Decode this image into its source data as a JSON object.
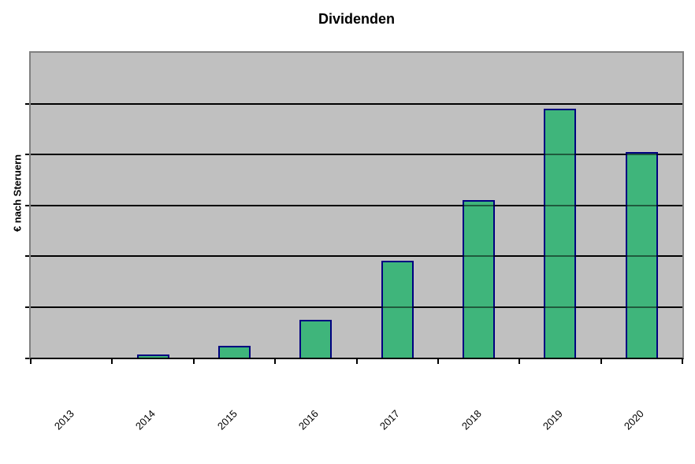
{
  "chart_data": {
    "type": "bar",
    "title": "Dividenden",
    "ylabel": "€ nach Steruern",
    "xlabel": "",
    "categories": [
      "2013",
      "2014",
      "2015",
      "2016",
      "2017",
      "2018",
      "2019",
      "2020"
    ],
    "values": [
      0,
      0.06,
      0.23,
      0.75,
      1.9,
      3.1,
      4.9,
      4.05
    ],
    "ylim": [
      0,
      6
    ],
    "y_gridline_interval": 1,
    "y_tick_labels_visible": false,
    "x_tick_label_rotation_deg": 45,
    "grid": "horizontal-black-gridlines-over-bars",
    "legend": "none",
    "colors": {
      "bar_fill": "#3FB57B",
      "bar_border": "#000080",
      "plot_background": "#C0C0C0",
      "plot_border": "#808080",
      "gridline": "#000000",
      "gridline_over_bar": "rgba(0,0,0,0.5)",
      "axis_line": "#000000",
      "tick": "#000000",
      "text": "#000000",
      "page_background": "#FFFFFF"
    }
  }
}
